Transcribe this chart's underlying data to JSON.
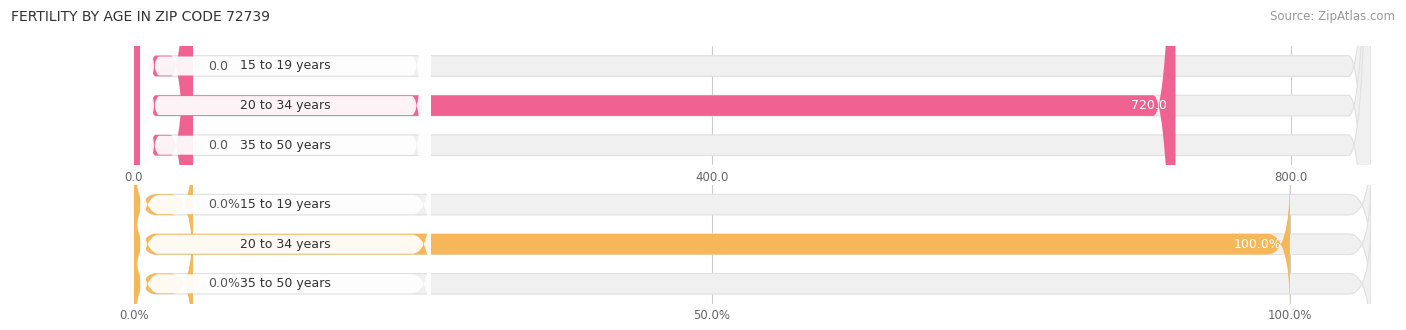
{
  "title": "FERTILITY BY AGE IN ZIP CODE 72739",
  "source": "Source: ZipAtlas.com",
  "top_chart": {
    "categories": [
      "15 to 19 years",
      "20 to 34 years",
      "35 to 50 years"
    ],
    "values": [
      0.0,
      720.0,
      0.0
    ],
    "xlim": [
      0,
      855.0
    ],
    "xticks": [
      0.0,
      400.0,
      800.0
    ],
    "bar_color": "#f06292",
    "track_color": "#f0f0f0",
    "track_edge_color": "#e0e0e0"
  },
  "bottom_chart": {
    "categories": [
      "15 to 19 years",
      "20 to 34 years",
      "35 to 50 years"
    ],
    "values": [
      0.0,
      100.0,
      0.0
    ],
    "xlim": [
      0,
      107.0
    ],
    "xticks": [
      0.0,
      50.0,
      100.0
    ],
    "xtick_labels": [
      "0.0%",
      "50.0%",
      "100.0%"
    ],
    "bar_color": "#f5b759",
    "track_color": "#f0f0f0",
    "track_edge_color": "#e0e0e0"
  },
  "bg_color": "#ffffff",
  "title_fontsize": 10,
  "label_fontsize": 9,
  "axis_fontsize": 8.5,
  "source_fontsize": 8.5,
  "bar_height": 0.52,
  "label_bg_color": "#ffffff",
  "label_text_color": "#333333",
  "value_outside_color": "#555555",
  "value_inside_color": "#ffffff",
  "grid_color": "#cccccc"
}
